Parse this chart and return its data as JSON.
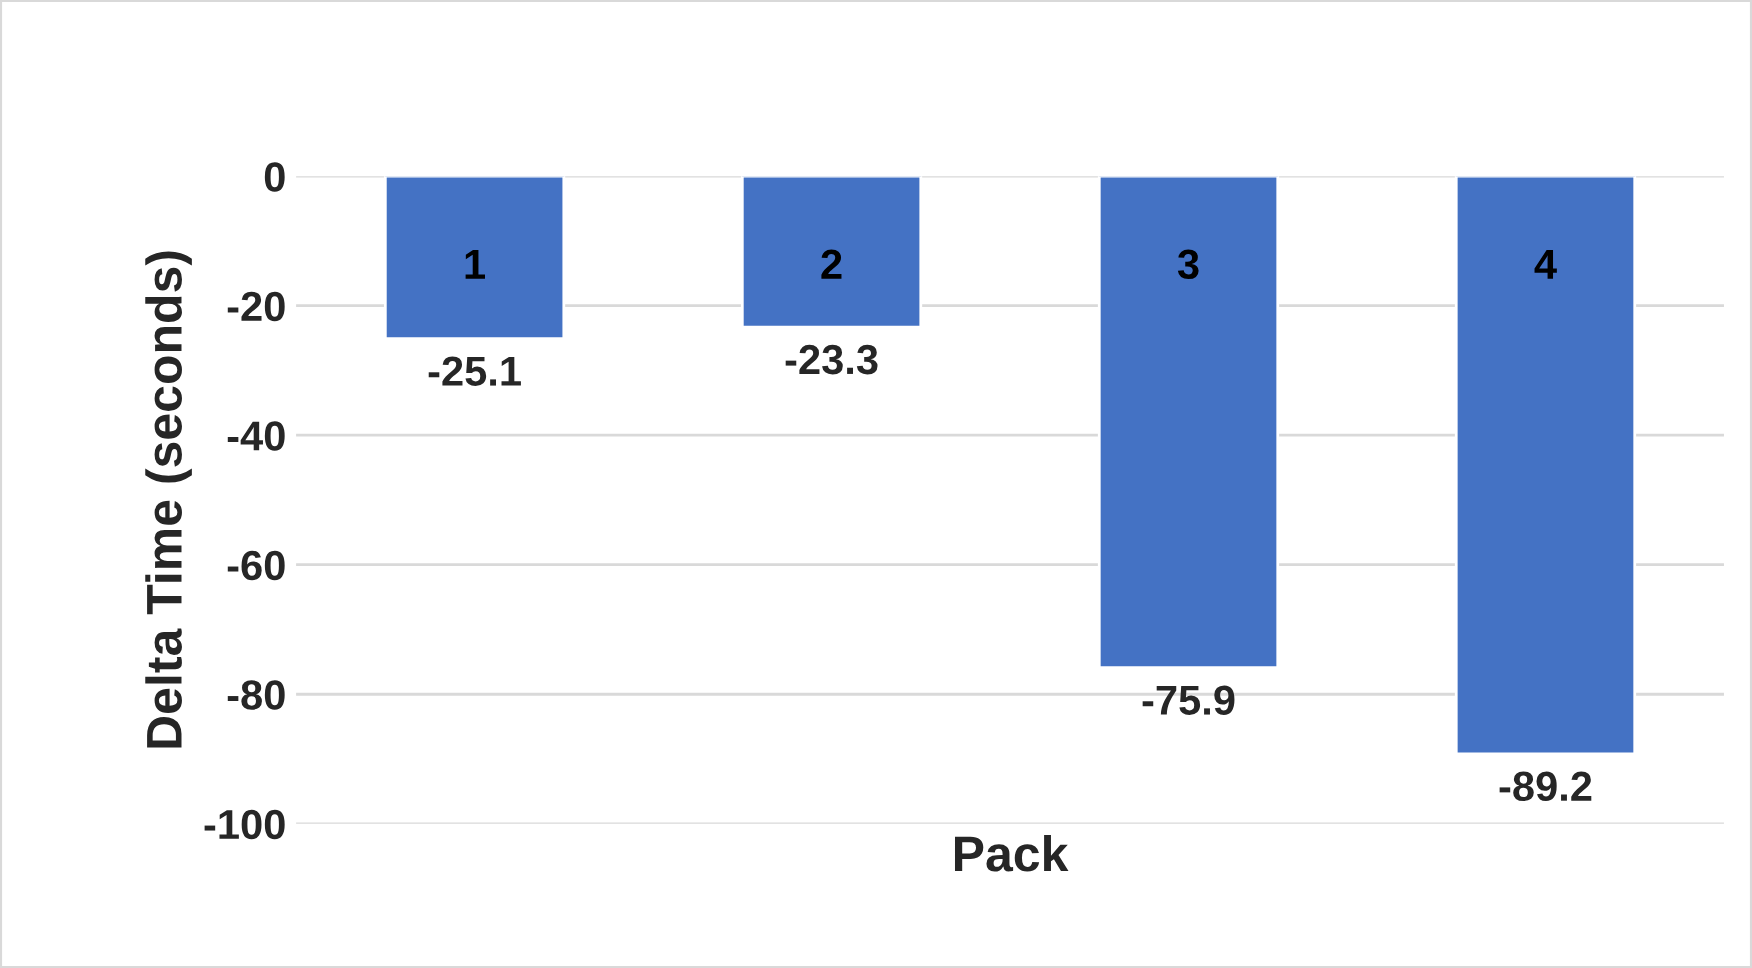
{
  "chart_data": {
    "type": "bar",
    "categories": [
      "1",
      "2",
      "3",
      "4"
    ],
    "values": [
      -25.1,
      -23.3,
      -75.9,
      -89.2
    ],
    "color": "#4472c4",
    "xlabel": "Pack",
    "ylabel": "Delta Time (seconds)",
    "ylim": [
      -100,
      0
    ],
    "yticks": [
      -100,
      -80,
      -60,
      -40,
      -20,
      0
    ],
    "grid": "y",
    "data_labels": true
  }
}
